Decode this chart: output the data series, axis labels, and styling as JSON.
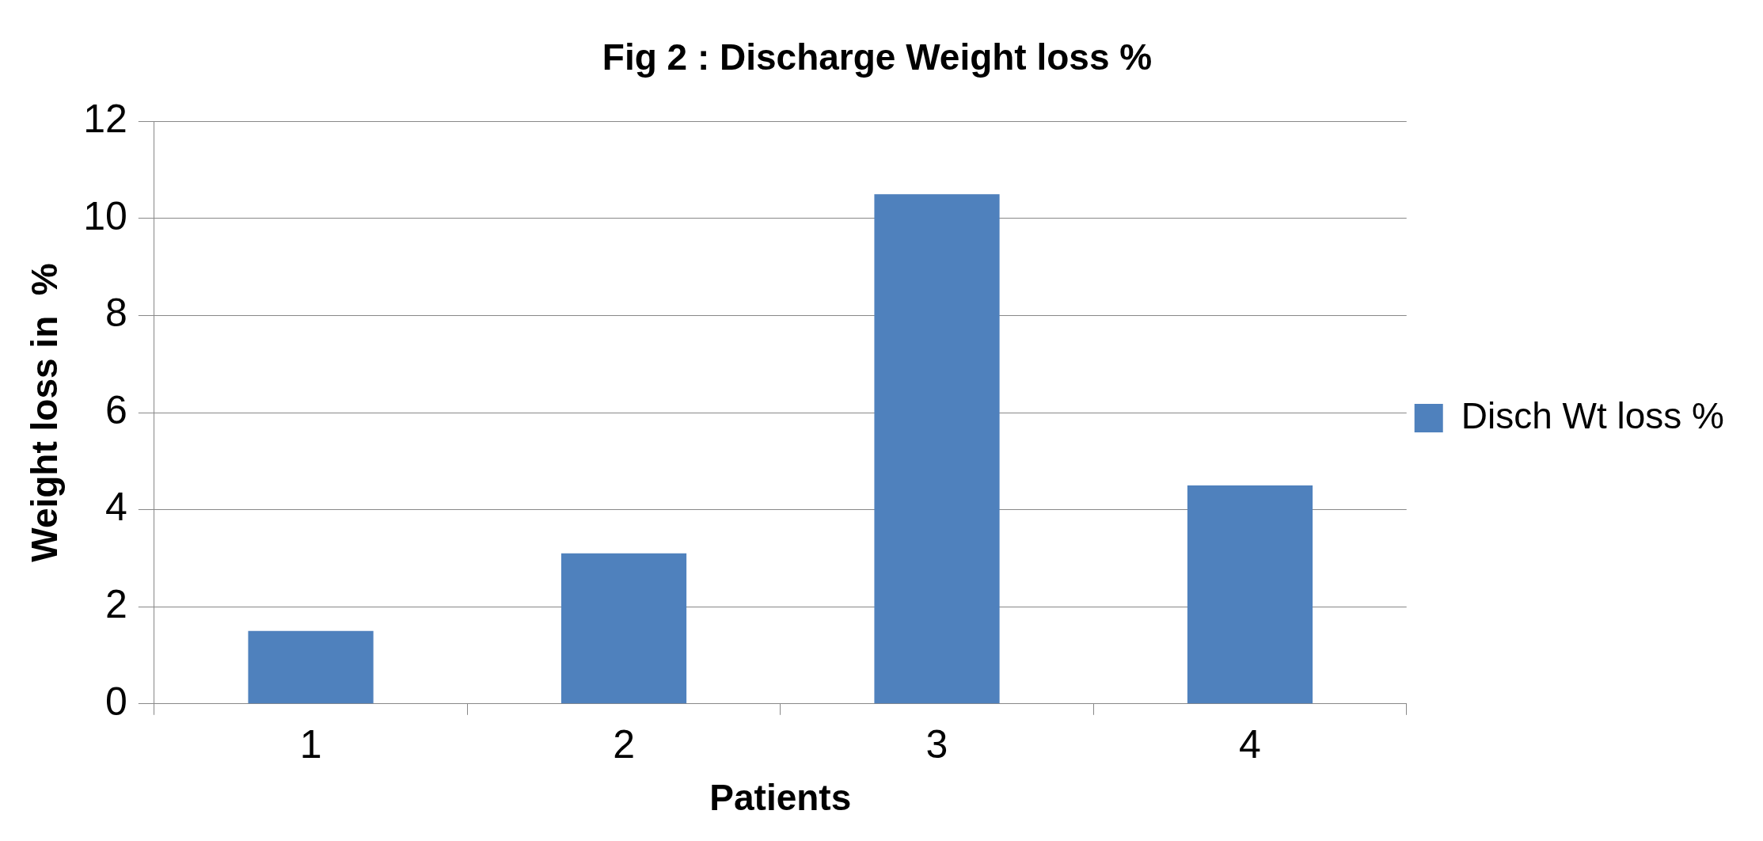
{
  "chart_data": {
    "type": "bar",
    "title": "Fig 2 : Discharge Weight loss %",
    "xlabel": "Patients",
    "ylabel": "Weight loss in  %",
    "categories": [
      "1",
      "2",
      "3",
      "4"
    ],
    "series": [
      {
        "name": "Disch Wt loss %",
        "color": "#4f81bd",
        "values": [
          1.5,
          3.1,
          10.5,
          4.5
        ]
      }
    ],
    "ylim": [
      0,
      12
    ],
    "yticks": [
      0,
      2,
      4,
      6,
      8,
      10,
      12
    ],
    "grid": "y",
    "legend": "right"
  }
}
